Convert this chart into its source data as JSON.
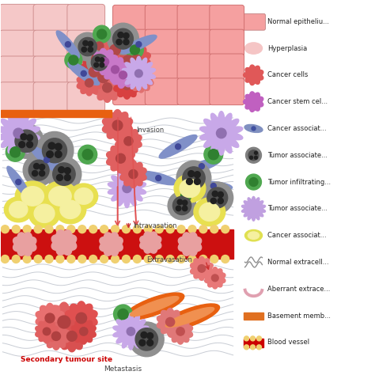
{
  "epithelial_color": "#f5a0a0",
  "epithelial_edge": "#d07070",
  "hyperplasia_color": "#f5c8c8",
  "hyperplasia_edge": "#d09090",
  "basement_color": "#e86010",
  "blood_vessel_color": "#cc1010",
  "blood_vessel_border": "#e8c050",
  "stroma_wave_color": "#c8ccd4",
  "cancer_cell_colors": [
    "#e85050",
    "#e06060",
    "#e87070",
    "#d04040",
    "#e06565",
    "#e55555",
    "#d55050",
    "#e06868",
    "#d84848",
    "#e05858",
    "#d84040",
    "#e06060"
  ],
  "stem_cell_color": "#c878c8",
  "macrophage_outer": "#909090",
  "macrophage_inner": "#505050",
  "macrophage_spot": "#202020",
  "lymphocyte_outer": "#50a850",
  "lymphocyte_inner": "#308030",
  "fibroblast_color": "#8090c8",
  "fibroblast_dot": "#404898",
  "neutrophil_color": "#c8a8e8",
  "adipocyte_outer": "#e8e050",
  "adipocyte_inner": "#f5f0a0",
  "invasion_color": "#cc3030",
  "annotation_color": "#444444",
  "secondary_site_color": "#cc0000",
  "legend_items": [
    {
      "label": "Normal epitheliu...",
      "color": "#f5a0a0",
      "shape": "rect"
    },
    {
      "label": "Hyperplasia",
      "color": "#f5c5c5",
      "shape": "oval"
    },
    {
      "label": "Cancer cells",
      "color": "#e05858",
      "shape": "spiky"
    },
    {
      "label": "Cancer stem cel...",
      "color": "#c060c0",
      "shape": "spiky"
    },
    {
      "label": "Cancer associat...",
      "color": "#8090c0",
      "shape": "spindle"
    },
    {
      "label": "Tumor associate...",
      "color": "#808080",
      "shape": "mac"
    },
    {
      "label": "Tumor infiltrating...",
      "color": "#50a850",
      "shape": "lympho"
    },
    {
      "label": "Tumor associate...",
      "color": "#c0a0e0",
      "shape": "neutro"
    },
    {
      "label": "Cancer associat...",
      "color": "#e0e050",
      "shape": "adipo"
    },
    {
      "label": "Normal extracell...",
      "color": "#a0a0a0",
      "shape": "wave"
    },
    {
      "label": "Aberrant extrace...",
      "color": "#f0c0d0",
      "shape": "curve"
    },
    {
      "label": "Basement memb...",
      "color": "#e07020",
      "shape": "rect_bm"
    },
    {
      "label": "Blood vessel",
      "color": "#cc0000",
      "shape": "rect_bv"
    }
  ]
}
